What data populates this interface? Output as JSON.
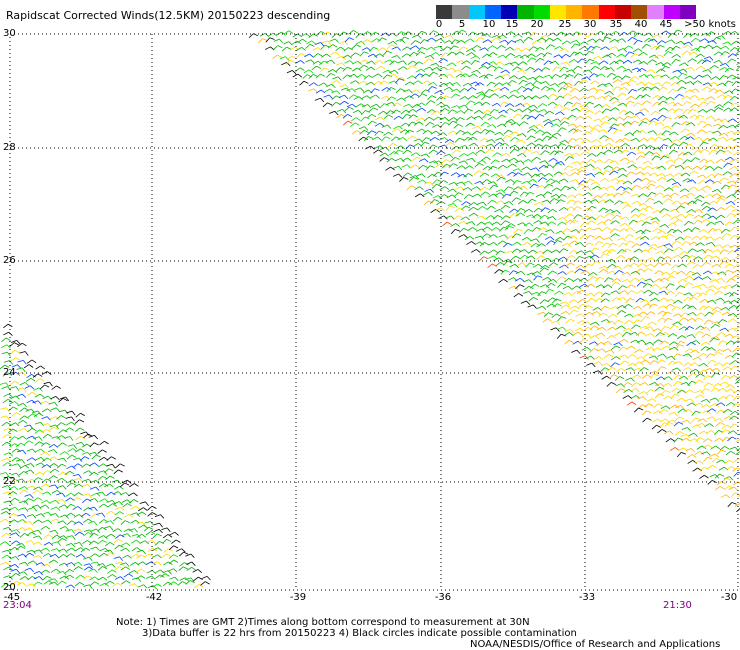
{
  "title": "Rapidscat Corrected Winds(12.5KM) 20150223 descending",
  "legend": {
    "labels": [
      "0",
      "5",
      "10",
      "15",
      "20",
      "25",
      "30",
      "35",
      "40",
      "45",
      ">50 knots"
    ],
    "colors": [
      "#3a3a3a",
      "#8c8c8c",
      "#00c8ff",
      "#0064ff",
      "#0000b4",
      "#00b400",
      "#00dc00",
      "#ffe600",
      "#ffb400",
      "#ff7800",
      "#ff0000",
      "#c80000",
      "#a05000",
      "#e080ff",
      "#c000ff",
      "#8000c0"
    ]
  },
  "map": {
    "lat_labels": [
      "30",
      "28",
      "26",
      "24",
      "22",
      "20"
    ],
    "lon_labels": [
      "-45",
      "-42",
      "-39",
      "-36",
      "-33",
      "-30"
    ],
    "time_left": "23:04",
    "time_right": "21:30"
  },
  "notes": {
    "line1": "Note: 1) Times are GMT 2)Times along bottom correspond to measurement at 30N",
    "line2": "3)Data buffer is 22 hrs from 20150223 4) Black circles indicate possible contamination",
    "credit": "NOAA/NESDIS/Office of Research and Applications"
  }
}
